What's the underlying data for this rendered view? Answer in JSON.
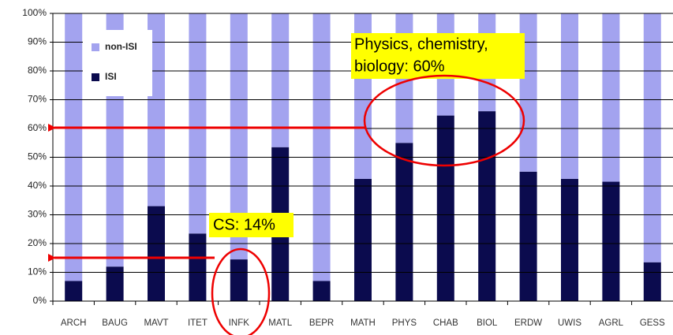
{
  "chart_data": {
    "type": "stacked_bar",
    "categories": [
      "ARCH",
      "BAUG",
      "MAVT",
      "ITET",
      "INFK",
      "MATL",
      "BEPR",
      "MATH",
      "PHYS",
      "CHAB",
      "BIOL",
      "ERDW",
      "UWIS",
      "AGRL",
      "GESS"
    ],
    "series": [
      {
        "name": "non-ISI",
        "color": "#a3a3ef",
        "values": [
          93,
          88,
          67,
          76.5,
          85.5,
          46.5,
          93,
          57.5,
          45,
          35.5,
          34,
          55,
          57.5,
          58.5,
          86.5
        ]
      },
      {
        "name": "ISI",
        "color": "#0b0b4e",
        "values": [
          7,
          12,
          33,
          23.5,
          14.5,
          53.5,
          7,
          42.5,
          55,
          64.5,
          66,
          45,
          42.5,
          41.5,
          13.5
        ]
      }
    ],
    "ylim": [
      0,
      100
    ],
    "yticks": [
      {
        "value": 0,
        "label": "0%"
      },
      {
        "value": 10,
        "label": "10%"
      },
      {
        "value": 20,
        "label": "20%"
      },
      {
        "value": 30,
        "label": "30%"
      },
      {
        "value": 40,
        "label": "40%"
      },
      {
        "value": 50,
        "label": "50%"
      },
      {
        "value": 60,
        "label": "60%"
      },
      {
        "value": 70,
        "label": "70%"
      },
      {
        "value": 80,
        "label": "80%"
      },
      {
        "value": 90,
        "label": "90%"
      },
      {
        "value": 100,
        "label": "100%"
      }
    ],
    "grid": true,
    "legend": "upper left",
    "annotations": [
      {
        "text": [
          "Physics, chemistry,",
          "biology: 60%"
        ]
      },
      {
        "text": "CS: 14%"
      }
    ]
  }
}
